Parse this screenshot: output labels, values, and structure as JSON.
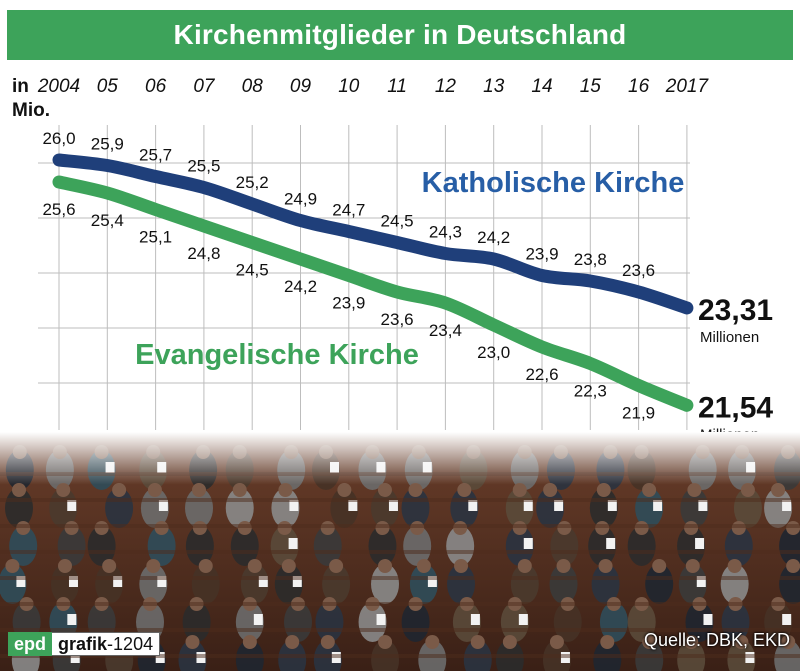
{
  "title": "Kirchenmitglieder in Deutschland",
  "unit_label_line1": "in",
  "unit_label_line2": "Mio.",
  "chart_data": {
    "type": "line",
    "title": "Kirchenmitglieder in Deutschland",
    "ylabel": "in Mio.",
    "x": [
      2004,
      2005,
      2006,
      2007,
      2008,
      2009,
      2010,
      2011,
      2012,
      2013,
      2014,
      2015,
      2016,
      2017
    ],
    "tick_labels": [
      "2004",
      "05",
      "06",
      "07",
      "08",
      "09",
      "10",
      "11",
      "12",
      "13",
      "14",
      "15",
      "16",
      "2017"
    ],
    "ylim": [
      21.0,
      26.5
    ],
    "grid": "horizontal",
    "series": [
      {
        "name": "Katholische Kirche",
        "color": "#1f3f7a",
        "label_color": "#275ea6",
        "values": [
          26.0,
          25.9,
          25.7,
          25.5,
          25.2,
          24.9,
          24.7,
          24.5,
          24.3,
          24.2,
          23.9,
          23.8,
          23.6,
          23.31
        ],
        "labels": [
          "26,0",
          "25,9",
          "25,7",
          "25,5",
          "25,2",
          "24,9",
          "24,7",
          "24,5",
          "24,3",
          "24,2",
          "23,9",
          "23,8",
          "23,6",
          ""
        ],
        "end_value": "23,31",
        "end_unit": "Millionen"
      },
      {
        "name": "Evangelische Kirche",
        "color": "#3da35a",
        "label_color": "#3da35a",
        "values": [
          25.6,
          25.4,
          25.1,
          24.8,
          24.5,
          24.2,
          23.9,
          23.6,
          23.4,
          23.0,
          22.6,
          22.3,
          21.9,
          21.54
        ],
        "labels": [
          "25,6",
          "25,4",
          "25,1",
          "24,8",
          "24,5",
          "24,2",
          "23,9",
          "23,6",
          "23,4",
          "23,0",
          "22,6",
          "22,3",
          "21,9",
          ""
        ],
        "end_value": "21,54",
        "end_unit": "Millionen"
      }
    ]
  },
  "footer": {
    "brand": "epd",
    "grafik_word": "grafik",
    "grafik_number": "-1204",
    "source": "Quelle: DBK, EKD"
  }
}
